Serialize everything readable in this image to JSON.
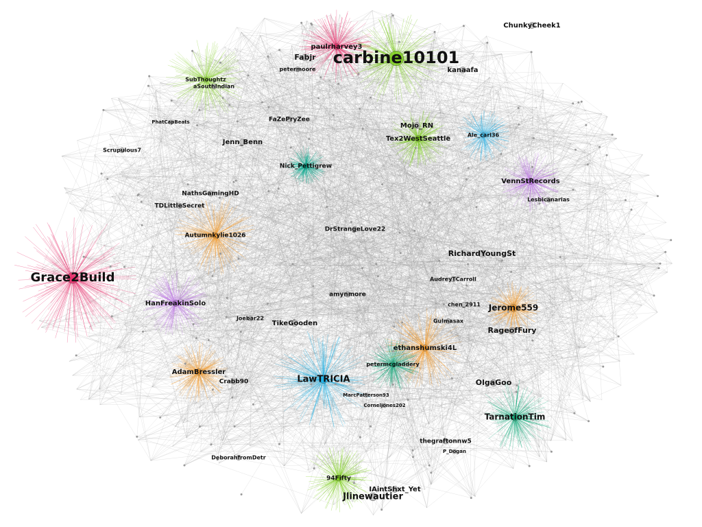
{
  "nodes": [
    {
      "label": "Grace2Build"
    },
    {
      "label": "carbine10101"
    },
    {
      "label": "paulrharvey3"
    },
    {
      "label": "Fabjr"
    },
    {
      "label": "ChunkyCheek1"
    },
    {
      "label": "kanaafa"
    },
    {
      "label": "petermoore"
    },
    {
      "label": "SubThoughtz"
    },
    {
      "label": "aSouthIndian"
    },
    {
      "label": "FaZePryZee"
    },
    {
      "label": "Jenn_Benn"
    },
    {
      "label": "Nick_Pettigrew"
    },
    {
      "label": "Tex2WestSeattle"
    },
    {
      "label": "Mojo_RN"
    },
    {
      "label": "Ale_carl36"
    },
    {
      "label": "VennStRecords"
    },
    {
      "label": "Lesbicanarias"
    },
    {
      "label": "NathsGamingHD"
    },
    {
      "label": "TDLittleSecret"
    },
    {
      "label": "Autumnkylie1026"
    },
    {
      "label": "DrStrangeLove22"
    },
    {
      "label": "RichardYoungSt"
    },
    {
      "label": "AudreyTCarroll"
    },
    {
      "label": "HanFreakinSolo"
    },
    {
      "label": "amynmore"
    },
    {
      "label": "Jerome559"
    },
    {
      "label": "TikeGooden"
    },
    {
      "label": "RageofFury"
    },
    {
      "label": "ethanshumski4L"
    },
    {
      "label": "AdamBressler"
    },
    {
      "label": "Crabb90"
    },
    {
      "label": "LawTRICIA"
    },
    {
      "label": "OlgaGoo"
    },
    {
      "label": "TarnationTim"
    },
    {
      "label": "thegraftonnw5"
    },
    {
      "label": "DeborahfromDetr"
    },
    {
      "label": "94Fifty"
    },
    {
      "label": "IAintShxt_Yet"
    },
    {
      "label": "Jlinewautier"
    },
    {
      "label": "Scrupulous7"
    },
    {
      "label": "PhatCapBeats"
    },
    {
      "label": "MarcPatterson93"
    },
    {
      "label": "Corneljones202"
    },
    {
      "label": "P_Dogan"
    },
    {
      "label": "petermcgladdery"
    },
    {
      "label": "Joebar22"
    },
    {
      "label": "chen_2911"
    },
    {
      "label": "Gulmasax"
    }
  ]
}
